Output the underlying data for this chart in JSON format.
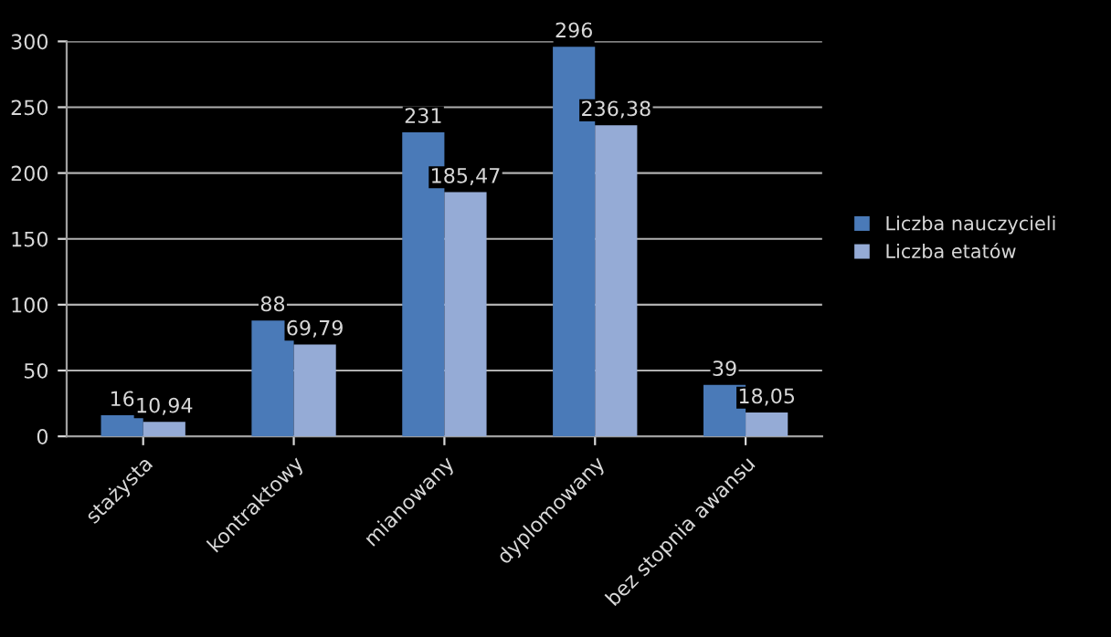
{
  "chart_data": {
    "type": "bar",
    "categories": [
      "stażysta",
      "kontraktowy",
      "mianowany",
      "dyplomowany",
      "bez stopnia awansu"
    ],
    "series": [
      {
        "name": "Liczba nauczycieli",
        "color": "#4a7ab8",
        "values": [
          16,
          88,
          231,
          296,
          39
        ],
        "value_labels": [
          "16",
          "88",
          "231",
          "296",
          "39"
        ]
      },
      {
        "name": "Liczba etatów",
        "color": "#95abd6",
        "values": [
          10.94,
          69.79,
          185.47,
          236.38,
          18.05
        ],
        "value_labels": [
          "10,94",
          "69,79",
          "185,47",
          "236,38",
          "18,05"
        ]
      }
    ],
    "ylim": [
      0,
      300
    ],
    "yticks": [
      0,
      50,
      100,
      150,
      200,
      250,
      300
    ],
    "grid": "y",
    "legend": "right"
  }
}
